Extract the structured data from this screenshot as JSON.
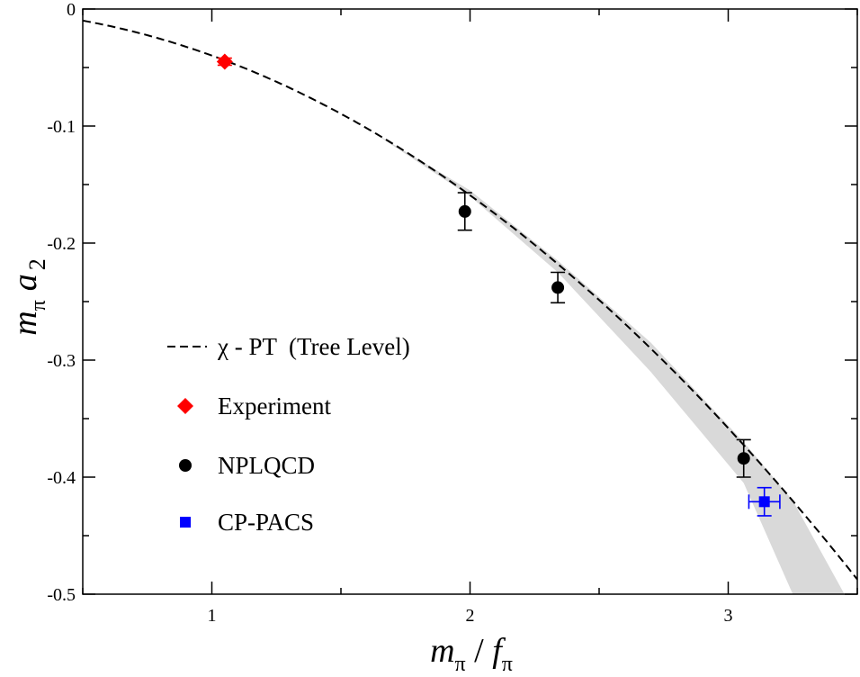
{
  "chart_data": {
    "type": "scatter",
    "title": "",
    "xlabel": {
      "main": "m",
      "sub1": "π",
      "slash": " / ",
      "main2": "f",
      "sub2": "π"
    },
    "ylabel": {
      "main": "m",
      "sub1": "π",
      "main2": "a",
      "sub2": "2"
    },
    "xlim": [
      0.5,
      3.5
    ],
    "ylim": [
      -0.5,
      0.0
    ],
    "xticks": [
      1,
      2,
      3
    ],
    "xtick_labels": [
      "1",
      "2",
      "3"
    ],
    "yticks": [
      0,
      -0.1,
      -0.2,
      -0.3,
      -0.4,
      -0.5
    ],
    "ytick_labels": [
      "0",
      "-0.1",
      "-0.2",
      "-0.3",
      "-0.4",
      "-0.5"
    ],
    "grid": false,
    "legend_position": "left-middle",
    "series": [
      {
        "name": "χ - PT  (Tree Level)",
        "kind": "line",
        "style": "dashed",
        "color": "#000000",
        "formula": "y = -x^2 / (8*pi)"
      },
      {
        "name": "Experiment",
        "kind": "points",
        "marker": "diamond",
        "color": "#ff0000",
        "points": [
          {
            "x": 1.05,
            "y": -0.045,
            "yerr": 0.003
          }
        ]
      },
      {
        "name": "NPLQCD",
        "kind": "points",
        "marker": "circle",
        "color": "#000000",
        "points": [
          {
            "x": 1.98,
            "y": -0.173,
            "yerr": 0.016
          },
          {
            "x": 2.34,
            "y": -0.238,
            "yerr": 0.013
          },
          {
            "x": 3.06,
            "y": -0.384,
            "yerr": 0.016
          }
        ]
      },
      {
        "name": "CP-PACS",
        "kind": "points",
        "marker": "square",
        "color": "#0000ff",
        "points": [
          {
            "x": 3.14,
            "y": -0.421,
            "yerr": 0.012,
            "xerr": 0.06
          }
        ]
      }
    ],
    "band": {
      "color": "#d9d9d9",
      "x": [
        1.3,
        1.6,
        2.0,
        2.34,
        2.7,
        3.06,
        3.25,
        3.45
      ],
      "upper": [
        -0.068,
        -0.102,
        -0.155,
        -0.215,
        -0.285,
        -0.37,
        -0.42,
        -0.5
      ],
      "lower": [
        -0.068,
        -0.102,
        -0.16,
        -0.225,
        -0.31,
        -0.405,
        -0.5,
        -0.5
      ]
    }
  }
}
